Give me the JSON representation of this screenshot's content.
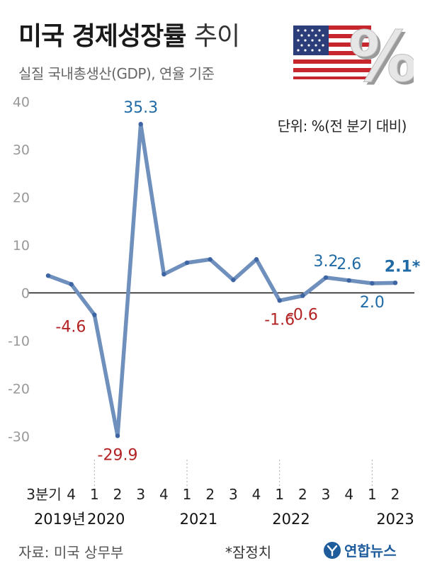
{
  "header": {
    "title_bold": "미국 경제성장률",
    "title_light": "추이",
    "subtitle": "실질 국내총생산(GDP), 연율 기준",
    "unit_note": "단위: %(전 분기 대비)"
  },
  "footer": {
    "source": "자료: 미국 상무부",
    "footnote": "*잠정치",
    "agency": "연합뉴스"
  },
  "colors": {
    "line": "#6f8fbd",
    "positive_label": "#1f6aa5",
    "negative_label": "#b22222",
    "axis_tick": "#999999"
  },
  "chart_data": {
    "type": "line",
    "y_ticks": [
      40,
      30,
      20,
      10,
      0,
      -10,
      -20,
      -30
    ],
    "y_tick_labels": [
      "40",
      "30",
      "20",
      "10",
      "0",
      "-10",
      "-20",
      "-30"
    ],
    "ylim": [
      -34,
      42
    ],
    "quarter_labels": [
      "3분기",
      "4",
      "1",
      "2",
      "3",
      "4",
      "1",
      "2",
      "3",
      "4",
      "1",
      "2",
      "3",
      "4",
      "1",
      "2"
    ],
    "year_labels": [
      {
        "label": "2019년",
        "index": 0.5
      },
      {
        "label": "2020",
        "index": 2.5
      },
      {
        "label": "2021",
        "index": 6.5
      },
      {
        "label": "2022",
        "index": 10.5
      },
      {
        "label": "2023",
        "index": 15
      }
    ],
    "year_dividers": [
      2,
      6,
      10,
      14
    ],
    "values": [
      3.6,
      1.8,
      -4.6,
      -29.9,
      35.3,
      3.9,
      6.3,
      7.0,
      2.7,
      7.0,
      -1.6,
      -0.6,
      3.2,
      2.6,
      2.0,
      2.1
    ],
    "data_labels": [
      {
        "index": 2,
        "text": "-4.6",
        "pos": "left-below",
        "sign": "neg"
      },
      {
        "index": 3,
        "text": "-29.9",
        "pos": "below",
        "sign": "neg"
      },
      {
        "index": 4,
        "text": "35.3",
        "pos": "above",
        "sign": "pos"
      },
      {
        "index": 10,
        "text": "-1.6",
        "pos": "below",
        "sign": "neg"
      },
      {
        "index": 11,
        "text": "-0.6",
        "pos": "below",
        "sign": "neg"
      },
      {
        "index": 12,
        "text": "3.2",
        "pos": "above",
        "sign": "pos"
      },
      {
        "index": 13,
        "text": "2.6",
        "pos": "above",
        "sign": "pos"
      },
      {
        "index": 14,
        "text": "2.0",
        "pos": "below",
        "sign": "pos"
      },
      {
        "index": 15,
        "text": "2.1*",
        "pos": "above",
        "sign": "pos",
        "bold": true
      }
    ]
  }
}
